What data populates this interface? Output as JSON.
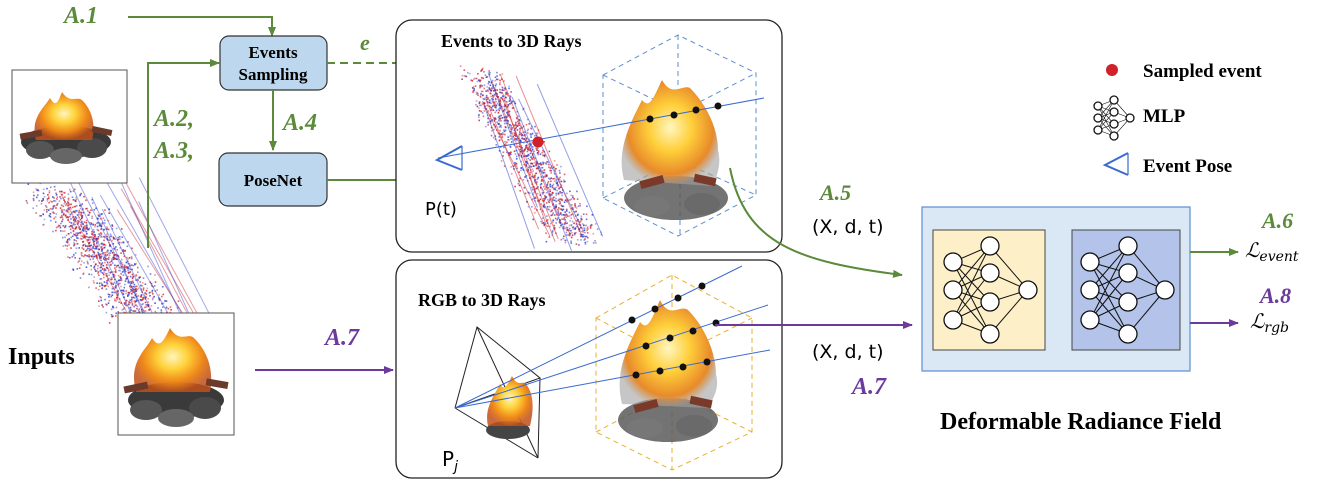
{
  "labels": {
    "a1": "A.1",
    "a23_line1": "A.2,",
    "a23_line2": "A.3,",
    "a4": "A.4",
    "a5": "A.5",
    "a6": "A.6",
    "a7_left": "A.7",
    "a7_right": "A.7",
    "a8": "A.8",
    "e": "e"
  },
  "boxes": {
    "events_sampling_line1": "Events",
    "events_sampling_line2": "Sampling",
    "posenet": "PoseNet",
    "events_to_rays_title": "Events to 3D Rays",
    "rgb_to_rays_title": "RGB to 3D Rays",
    "deformable_field": "Deformable Radiance Field",
    "inputs": "Inputs"
  },
  "math": {
    "pose_t": "P(t)",
    "pose_j": "P",
    "pose_j_sub": "j",
    "xdt_top": "(X, d, t)",
    "xdt_bottom": "(X, d, t)",
    "loss_event": "ℒ",
    "loss_event_sub": "event",
    "loss_rgb": "ℒ",
    "loss_rgb_sub": "rgb"
  },
  "legend": {
    "sampled_event": "Sampled event",
    "mlp": "MLP",
    "event_pose": "Event Pose"
  },
  "colors": {
    "green": "#5a8a3a",
    "purple": "#6b3a9c",
    "box_blue": "#bdd7ee",
    "field_bg": "#dae8f5",
    "mlp_yellow": "#fdf0c8",
    "mlp_blue": "#b4c3ea",
    "event_red": "#d0202a",
    "event_blue": "#2a40d0",
    "dash_blue": "#5b8fd0",
    "dash_orange": "#e8b030"
  }
}
